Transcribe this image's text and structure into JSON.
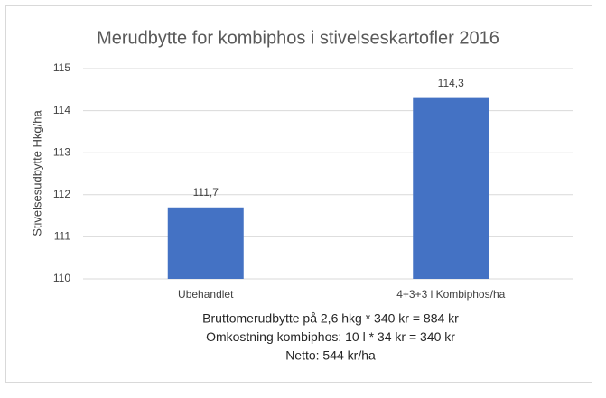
{
  "chart_data": {
    "type": "bar",
    "title": "Merudbytte for kombiphos i stivelseskartofler 2016",
    "y_label": "Stivelsesudbytte Hkg/ha",
    "categories": [
      "Ubehandlet",
      "4+3+3 l Kombiphos/ha"
    ],
    "values": [
      111.7,
      114.3
    ],
    "value_labels": [
      "111,7",
      "114,3"
    ],
    "color": "#4472c4",
    "ylim": [
      110,
      115
    ],
    "yticks": [
      110,
      111,
      112,
      113,
      114,
      115
    ],
    "grid": true,
    "annotations": [
      "Bruttomerudbytte på 2,6 hkg * 340 kr = 884 kr",
      "Omkostning kombiphos: 10 l * 34 kr = 340 kr",
      "Netto: 544 kr/ha"
    ]
  }
}
